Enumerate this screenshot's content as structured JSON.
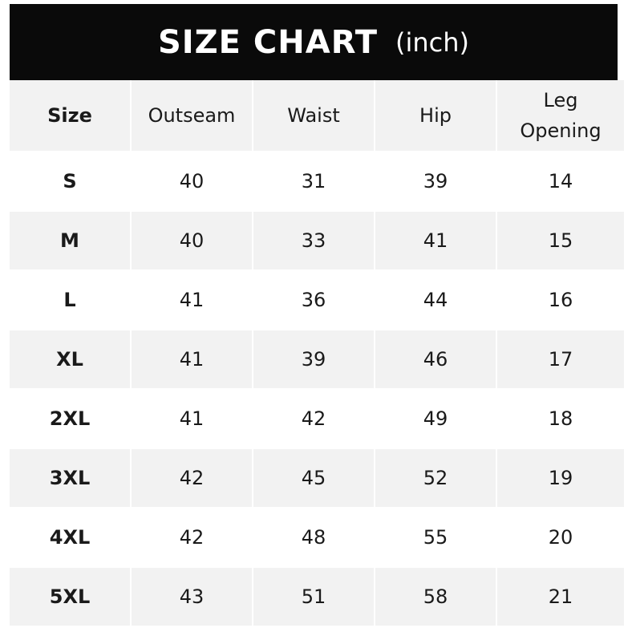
{
  "title": "SIZE CHART",
  "unit": "(inch)",
  "columns": [
    "Size",
    "Outseam",
    "Waist",
    "Hip",
    "Leg Opening"
  ],
  "rows": [
    [
      "S",
      "40",
      "31",
      "39",
      "14"
    ],
    [
      "M",
      "40",
      "33",
      "41",
      "15"
    ],
    [
      "L",
      "41",
      "36",
      "44",
      "16"
    ],
    [
      "XL",
      "41",
      "39",
      "46",
      "17"
    ],
    [
      "2XL",
      "41",
      "42",
      "49",
      "18"
    ],
    [
      "3XL",
      "42",
      "45",
      "52",
      "19"
    ],
    [
      "4XL",
      "42",
      "48",
      "55",
      "20"
    ],
    [
      "5XL",
      "43",
      "51",
      "58",
      "21"
    ]
  ],
  "colors": {
    "banner": "#0a0a0a",
    "stripe": "#f2f2f2"
  }
}
